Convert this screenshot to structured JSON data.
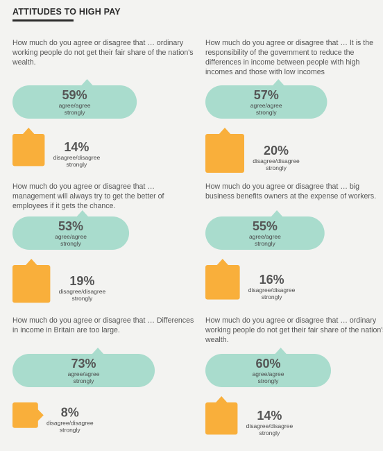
{
  "title": "ATTITUDES TO HIGH PAY",
  "colors": {
    "agree": "#a9dccd",
    "disagree": "#f9af3b",
    "background": "#f3f3f1",
    "text": "#555555"
  },
  "chart_data": [
    {
      "type": "bar",
      "question": "How much do you agree or disagree that … ordinary working people do not get their fair share of the nation's wealth.",
      "categories": [
        "agree/agree strongly",
        "disagree/disagree strongly"
      ],
      "values": [
        59,
        14
      ],
      "value_labels": [
        "59%",
        "14%"
      ],
      "unit": "%"
    },
    {
      "type": "bar",
      "question": "How much do you agree or disagree that … It is the responsibility of the government to reduce the differences in income between people with high incomes and those with low incomes",
      "categories": [
        "agree/agree strongly",
        "disagree/disagree strongly"
      ],
      "values": [
        57,
        20
      ],
      "value_labels": [
        "57%",
        "20%"
      ],
      "unit": "%"
    },
    {
      "type": "bar",
      "question": "How much do you agree or disagree that … management will always try to get the better of employees if it gets the chance.",
      "categories": [
        "agree/agree strongly",
        "disagree/disagree strongly"
      ],
      "values": [
        53,
        19
      ],
      "value_labels": [
        "53%",
        "19%"
      ],
      "unit": "%"
    },
    {
      "type": "bar",
      "question": "How much do you agree or disagree that … big business benefits owners at the expense of workers.",
      "categories": [
        "agree/agree strongly",
        "disagree/disagree strongly"
      ],
      "values": [
        55,
        16
      ],
      "value_labels": [
        "55%",
        "16%"
      ],
      "unit": "%"
    },
    {
      "type": "bar",
      "question": "How much do you agree or disagree that … Differences in income in Britain are too large.",
      "categories": [
        "agree/agree strongly",
        "disagree/disagree strongly"
      ],
      "values": [
        73,
        8
      ],
      "value_labels": [
        "73%",
        "8%"
      ],
      "unit": "%"
    },
    {
      "type": "bar",
      "question": "How much do you agree or disagree that … ordinary working people do not get their fair share of the nation's wealth.",
      "categories": [
        "agree/agree strongly",
        "disagree/disagree strongly"
      ],
      "values": [
        60,
        14
      ],
      "value_labels": [
        "60%",
        "14%"
      ],
      "unit": "%"
    }
  ]
}
